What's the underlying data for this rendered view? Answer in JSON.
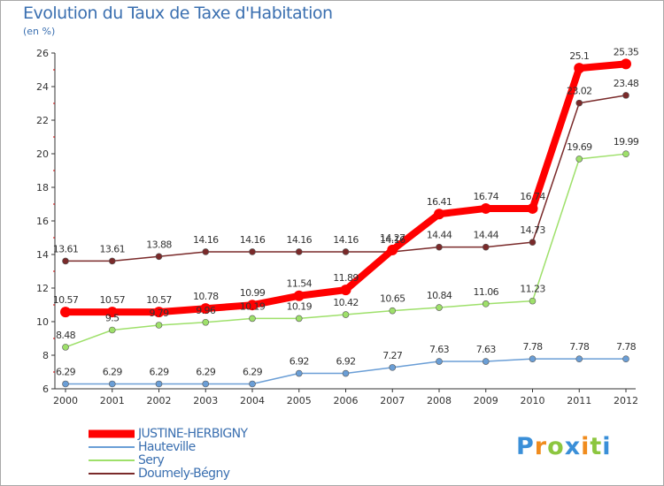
{
  "chart_data": {
    "type": "line",
    "title": "Evolution du Taux de Taxe d'Habitation",
    "subtitle": "(en %)",
    "x": [
      2000,
      2001,
      2002,
      2003,
      2004,
      2005,
      2006,
      2007,
      2008,
      2009,
      2010,
      2011,
      2012
    ],
    "ylim": [
      6,
      26
    ],
    "yticks": [
      6,
      8,
      10,
      12,
      14,
      16,
      18,
      20,
      22,
      24,
      26
    ],
    "grid": false,
    "legend_position": "bottom-left",
    "series": [
      {
        "name": "JUSTINE-HERBIGNY",
        "color": "#ff0000",
        "values": [
          10.57,
          10.57,
          10.57,
          10.78,
          10.99,
          11.54,
          11.89,
          14.27,
          16.41,
          16.74,
          16.74,
          25.1,
          25.35
        ],
        "labels": [
          "10.57",
          "10.57",
          "10.57",
          "10.78",
          "10.99",
          "11.54",
          "11.89",
          "14.27",
          "16.41",
          "16.74",
          "16.74",
          "25.1",
          "25.35"
        ]
      },
      {
        "name": "Hauteville",
        "color": "#6a9ed6",
        "values": [
          6.29,
          6.29,
          6.29,
          6.29,
          6.29,
          6.92,
          6.92,
          7.27,
          7.63,
          7.63,
          7.78,
          7.78,
          7.78
        ],
        "labels": [
          "6.29",
          "6.29",
          "6.29",
          "6.29",
          "6.29",
          "6.92",
          "6.92",
          "7.27",
          "7.63",
          "7.63",
          "7.78",
          "7.78",
          "7.78"
        ]
      },
      {
        "name": "Sery",
        "color": "#9ee06a",
        "values": [
          8.48,
          9.5,
          9.79,
          9.96,
          10.19,
          10.19,
          10.42,
          10.65,
          10.84,
          11.06,
          11.23,
          19.69,
          19.99
        ],
        "labels": [
          "8.48",
          "9.5",
          "9.79",
          "9.96",
          "10.19",
          "10.19",
          "10.42",
          "10.65",
          "10.84",
          "11.06",
          "11.23",
          "19.69",
          "19.99"
        ]
      },
      {
        "name": "Doumely-Bégny",
        "color": "#7a2a2a",
        "values": [
          13.61,
          13.61,
          13.88,
          14.16,
          14.16,
          14.16,
          14.16,
          14.16,
          14.44,
          14.44,
          14.73,
          23.02,
          23.48
        ],
        "labels": [
          "13.61",
          "13.61",
          "13.88",
          "14.16",
          "14.16",
          "14.16",
          "14.16",
          "14.16",
          "14.44",
          "14.44",
          "14.73",
          "23.02",
          "23.48"
        ]
      }
    ]
  },
  "logo": {
    "letters": [
      "P",
      "r",
      "o",
      "x",
      "i",
      "t",
      "i"
    ],
    "colors": [
      "#3a8fd8",
      "#f08c1e",
      "#8cc63f",
      "#3a8fd8",
      "#f08c1e",
      "#8cc63f",
      "#3a8fd8"
    ]
  }
}
